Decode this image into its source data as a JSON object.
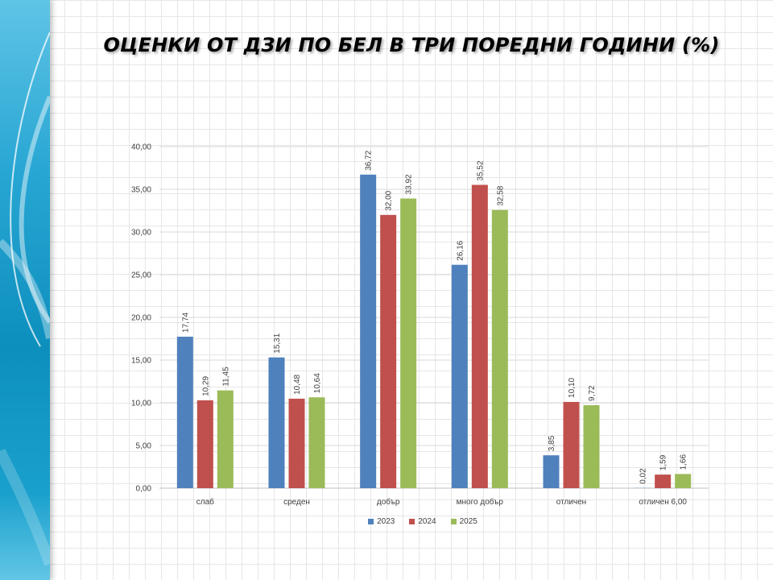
{
  "title": "ОЦЕНКИ ОТ ДЗИ ПО БЕЛ В ТРИ ПОРЕДНИ ГОДИНИ (%)",
  "chart_data": {
    "type": "bar",
    "title": "ОЦЕНКИ ОТ ДЗИ ПО БЕЛ В ТРИ ПОРЕДНИ ГОДИНИ (%)",
    "categories": [
      "слаб",
      "среден",
      "добър",
      "много добър",
      "отличен",
      "отличен 6,00"
    ],
    "series": [
      {
        "name": "2023",
        "color": "#4f81bd",
        "values": [
          17.74,
          15.31,
          36.72,
          26.16,
          3.85,
          0.02
        ],
        "labels": [
          "17,74",
          "15,31",
          "36,72",
          "26,16",
          "3,85",
          "0,02"
        ]
      },
      {
        "name": "2024",
        "color": "#c0504d",
        "values": [
          10.29,
          10.48,
          32.0,
          35.52,
          10.1,
          1.59
        ],
        "labels": [
          "10,29",
          "10,48",
          "32,00",
          "35,52",
          "10,10",
          "1,59"
        ]
      },
      {
        "name": "2025",
        "color": "#9bbb59",
        "values": [
          11.45,
          10.64,
          33.92,
          32.58,
          9.72,
          1.66
        ],
        "labels": [
          "11,45",
          "10,64",
          "33,92",
          "32,58",
          "9,72",
          "1,66"
        ]
      }
    ],
    "yticks": [
      "0,00",
      "5,00",
      "10,00",
      "15,00",
      "20,00",
      "25,00",
      "30,00",
      "35,00",
      "40,00"
    ],
    "ylim": [
      0,
      40
    ],
    "grid": true,
    "legend_position": "bottom"
  }
}
